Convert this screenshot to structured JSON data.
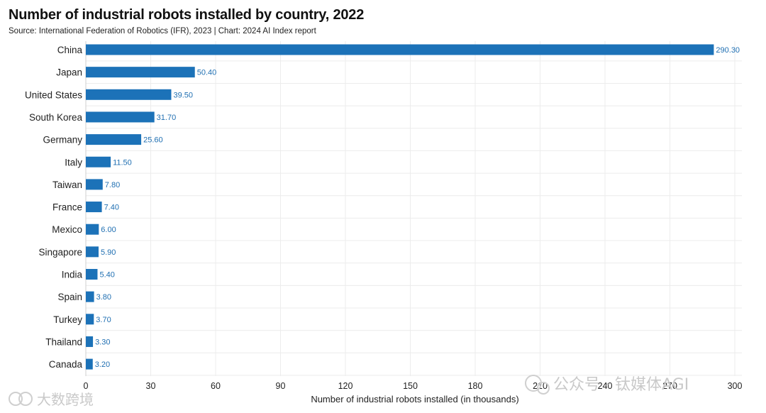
{
  "chart_data": {
    "type": "bar",
    "orientation": "horizontal",
    "title": "Number of industrial robots installed by country, 2022",
    "subtitle": "Source: International Federation of Robotics (IFR), 2023 | Chart: 2024 AI Index report",
    "categories": [
      "China",
      "Japan",
      "United States",
      "South Korea",
      "Germany",
      "Italy",
      "Taiwan",
      "France",
      "Mexico",
      "Singapore",
      "India",
      "Spain",
      "Turkey",
      "Thailand",
      "Canada"
    ],
    "values": [
      290.3,
      50.4,
      39.5,
      31.7,
      25.6,
      11.5,
      7.8,
      7.4,
      6.0,
      5.9,
      5.4,
      3.8,
      3.7,
      3.3,
      3.2
    ],
    "value_labels": [
      "290.30",
      "50.40",
      "39.50",
      "31.70",
      "25.60",
      "11.50",
      "7.80",
      "7.40",
      "6.00",
      "5.90",
      "5.40",
      "3.80",
      "3.70",
      "3.30",
      "3.20"
    ],
    "xlabel": "Number of industrial robots installed (in thousands)",
    "ylabel": "",
    "xlim": [
      0,
      300
    ],
    "xticks": [
      0,
      30,
      60,
      90,
      120,
      150,
      180,
      210,
      240,
      270,
      300
    ],
    "grid": true,
    "bar_color": "#1c72b8",
    "label_color": "#1f6fb2"
  },
  "watermarks": {
    "left": "大数跨境",
    "right": "公众号 · 钛媒体AGI"
  }
}
